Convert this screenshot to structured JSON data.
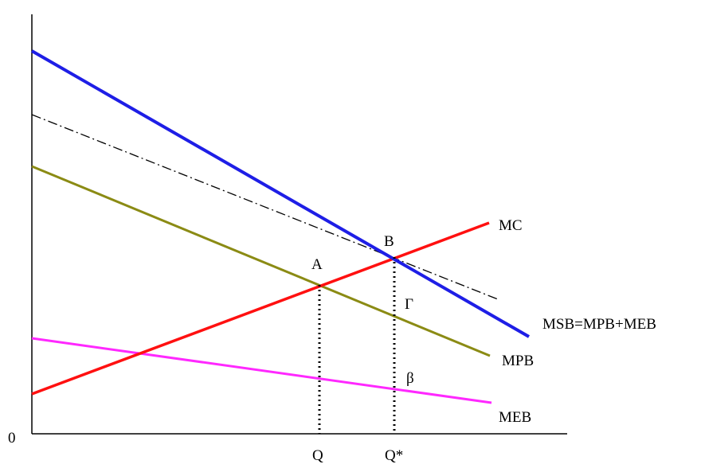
{
  "labels": {
    "origin": "0",
    "mc": "MC",
    "msb": "MSB=MPB+MEB",
    "mpb": "MPB",
    "meb": "MEB",
    "point_a": "A",
    "point_b": "B",
    "gamma": "Γ",
    "beta": "β",
    "q": "Q",
    "q_star": "Q*"
  },
  "colors": {
    "mc": "#ff1010",
    "msb": "#1e1ee6",
    "mpb": "#8b8b14",
    "meb": "#ff28ff",
    "dashdot": "#000000",
    "axes": "#000000"
  }
}
